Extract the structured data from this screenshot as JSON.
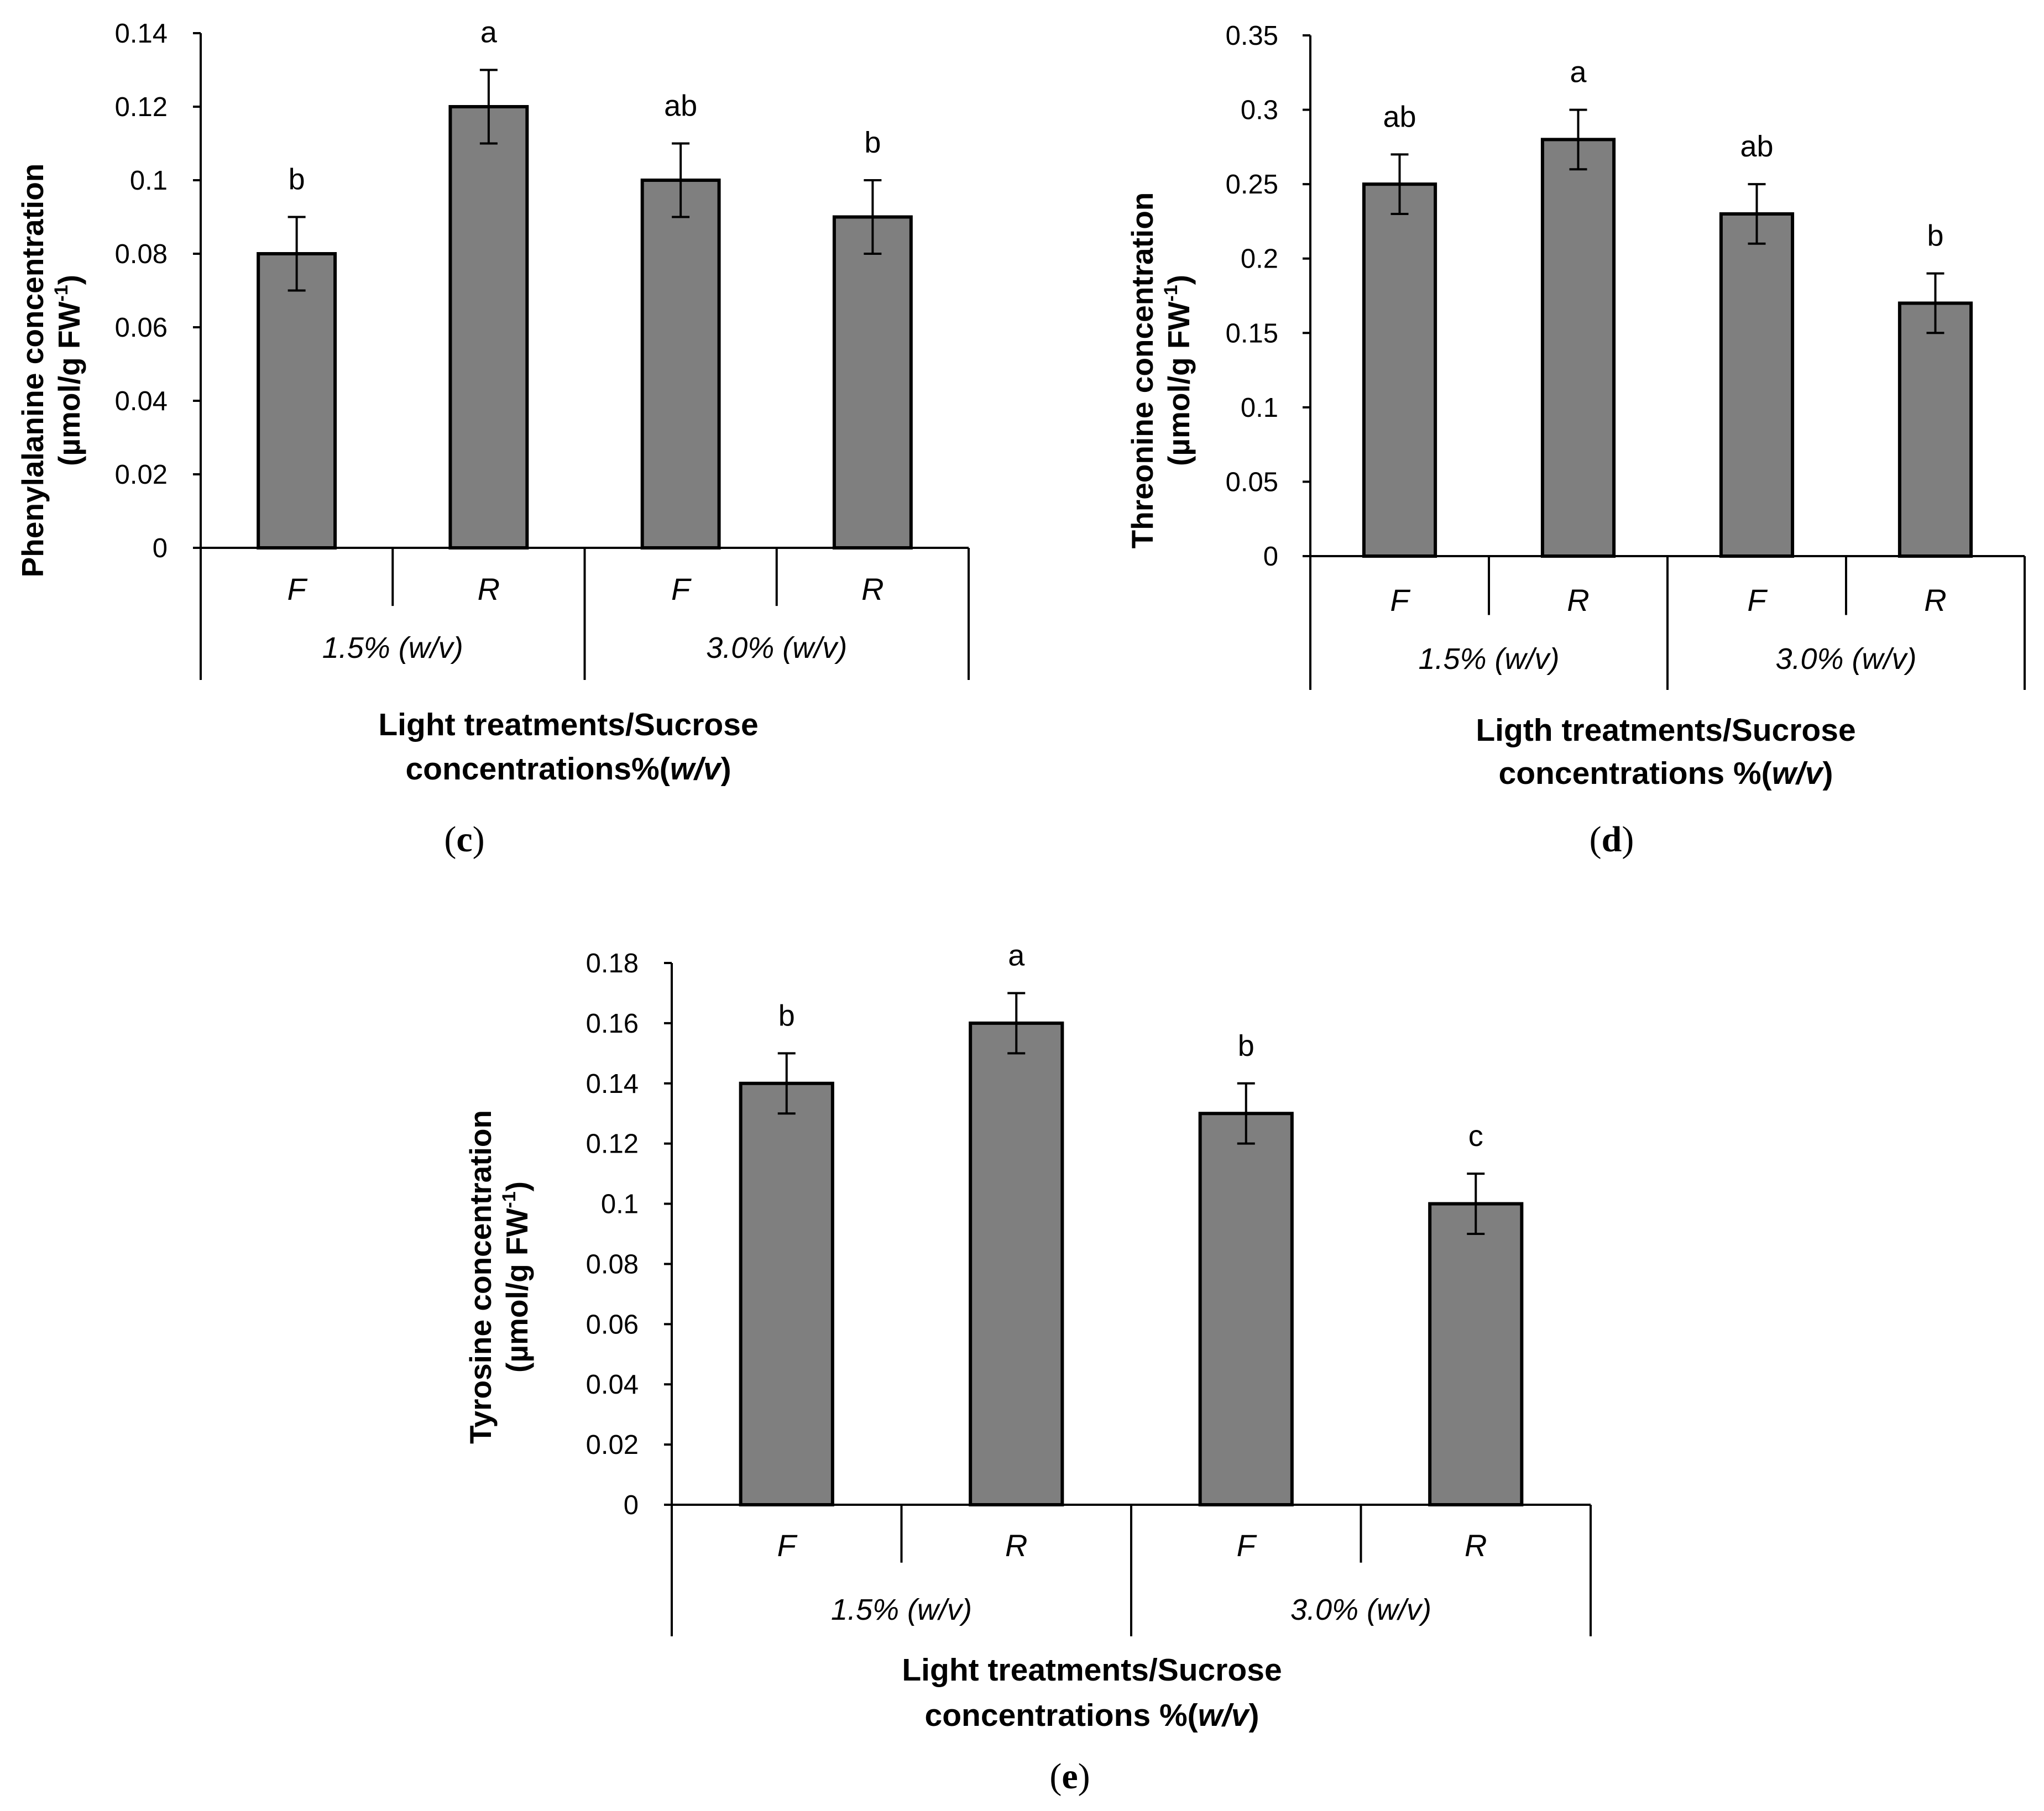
{
  "figure": {
    "colors": {
      "bar": "#7f7f7f",
      "stroke": "#000000"
    }
  },
  "chart_data": [
    {
      "panel": "c",
      "type": "bar",
      "categories": [
        "F",
        "R",
        "F",
        "R"
      ],
      "groups": [
        "1.5% (w/v)",
        "3.0% (w/v)"
      ],
      "values": [
        0.08,
        0.12,
        0.1,
        0.09
      ],
      "errors": [
        0.01,
        0.01,
        0.01,
        0.01
      ],
      "significance": [
        "b",
        "a",
        "ab",
        "b"
      ],
      "ylim": [
        0,
        0.14
      ],
      "yticks": [
        "0",
        "0.02",
        "0.04",
        "0.06",
        "0.08",
        "0.1",
        "0.12",
        "0.14"
      ],
      "ylabel_line1": "Phenylalanine concentration",
      "ylabel_line2_prefix": "(µmol/g FW",
      "ylabel_sup": "-1",
      "ylabel_line2_suffix": ")",
      "xlabel_line1": "Light treatments/Sucrose",
      "xlabel_line2_prefix": "concentrations%(",
      "xlabel_italic": "w/v",
      "xlabel_line2_suffix": ")",
      "label_open": "(",
      "label_letter": "c",
      "label_close": ")"
    },
    {
      "panel": "d",
      "type": "bar",
      "categories": [
        "F",
        "R",
        "F",
        "R"
      ],
      "groups": [
        "1.5% (w/v)",
        "3.0% (w/v)"
      ],
      "values": [
        0.25,
        0.28,
        0.23,
        0.17
      ],
      "errors": [
        0.02,
        0.02,
        0.02,
        0.02
      ],
      "significance": [
        "ab",
        "a",
        "ab",
        "b"
      ],
      "ylim": [
        0,
        0.35
      ],
      "yticks": [
        "0",
        "0.05",
        "0.1",
        "0.15",
        "0.2",
        "0.25",
        "0.3",
        "0.35"
      ],
      "ylabel_line1": "Threonine concentration",
      "ylabel_line2_prefix": "(µmol/g FW",
      "ylabel_sup": "-1",
      "ylabel_line2_suffix": ")",
      "xlabel_line1": "Ligth treatments/Sucrose",
      "xlabel_line2_prefix": "concentrations %(",
      "xlabel_italic": "w/v",
      "xlabel_line2_suffix": ")",
      "label_open": "(",
      "label_letter": "d",
      "label_close": ")"
    },
    {
      "panel": "e",
      "type": "bar",
      "categories": [
        "F",
        "R",
        "F",
        "R"
      ],
      "groups": [
        "1.5% (w/v)",
        "3.0% (w/v)"
      ],
      "values": [
        0.14,
        0.16,
        0.13,
        0.1
      ],
      "errors": [
        0.01,
        0.01,
        0.01,
        0.01
      ],
      "significance": [
        "b",
        "a",
        "b",
        "c"
      ],
      "ylim": [
        0,
        0.18
      ],
      "yticks": [
        "0",
        "0.02",
        "0.04",
        "0.06",
        "0.08",
        "0.1",
        "0.12",
        "0.14",
        "0.16",
        "0.18"
      ],
      "ylabel_line1": "Tyrosine concentration",
      "ylabel_line2_prefix": "(µmol/g FW",
      "ylabel_sup": "-1",
      "ylabel_line2_suffix": ")",
      "xlabel_line1": "Light treatments/Sucrose",
      "xlabel_line2_prefix": "concentrations %(",
      "xlabel_italic": "w/v",
      "xlabel_line2_suffix": ")",
      "label_open": "(",
      "label_letter": "e",
      "label_close": ")"
    }
  ]
}
